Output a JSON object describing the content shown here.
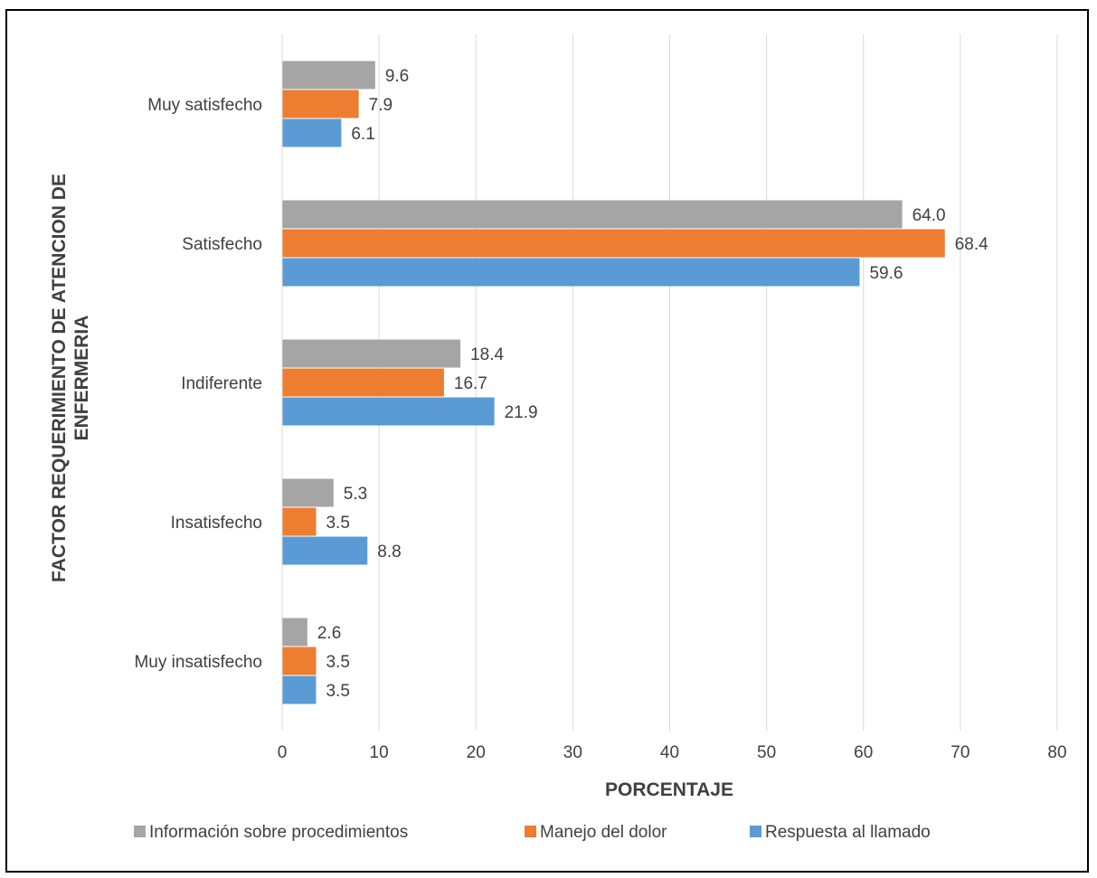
{
  "chart_data": {
    "type": "bar",
    "orientation": "horizontal",
    "categories": [
      "Muy satisfecho",
      "Satisfecho",
      "Indiferente",
      "Insatisfecho",
      "Muy insatisfecho"
    ],
    "series": [
      {
        "name": "Información sobre procedimientos",
        "color": "#A5A5A5",
        "values": [
          9.6,
          64.0,
          18.4,
          5.3,
          2.6
        ],
        "labels": [
          "9.6",
          "64.0",
          "18.4",
          "5.3",
          "2.6"
        ]
      },
      {
        "name": "Manejo del dolor",
        "color": "#ED7D31",
        "values": [
          7.9,
          68.4,
          16.7,
          3.5,
          3.5
        ],
        "labels": [
          "7.9",
          "68.4",
          "16.7",
          "3.5",
          "3.5"
        ]
      },
      {
        "name": "Respuesta al llamado",
        "color": "#5B9BD5",
        "values": [
          6.1,
          59.6,
          21.9,
          8.8,
          3.5
        ],
        "labels": [
          "6.1",
          "59.6",
          "21.9",
          "8.8",
          "3.5"
        ]
      }
    ],
    "xlabel": "PORCENTAJE",
    "ylabel": "FACTOR REQUERIMIENTO DE ATENCION DE ENFERMERIA",
    "xlim": [
      0,
      80
    ],
    "xticks": [
      "0",
      "10",
      "20",
      "30",
      "40",
      "50",
      "60",
      "70",
      "80"
    ],
    "grid": true,
    "legend_position": "bottom"
  }
}
